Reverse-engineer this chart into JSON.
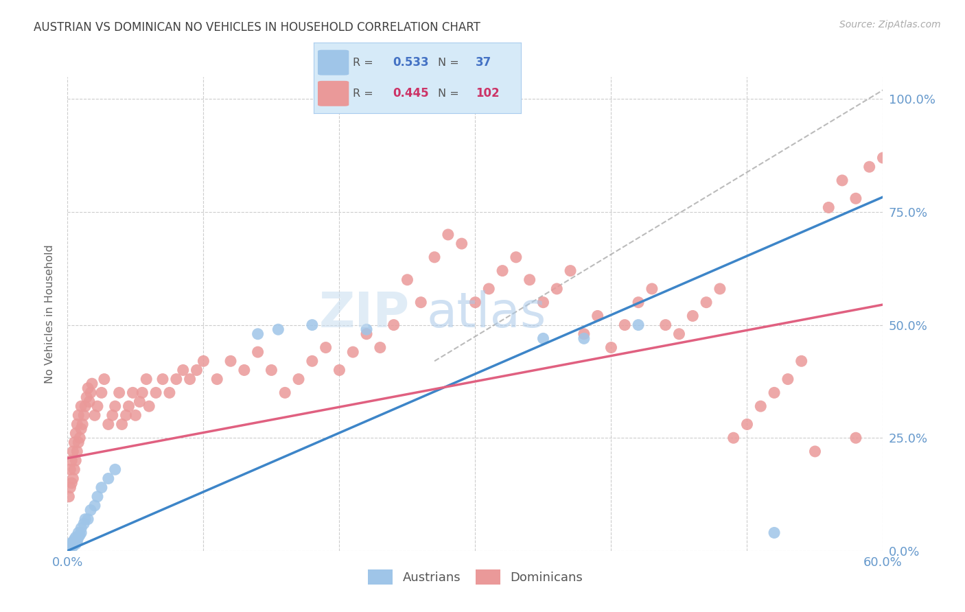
{
  "title": "AUSTRIAN VS DOMINICAN NO VEHICLES IN HOUSEHOLD CORRELATION CHART",
  "source": "Source: ZipAtlas.com",
  "xlim": [
    0.0,
    0.6
  ],
  "ylim": [
    0.0,
    1.05
  ],
  "austrians_R": 0.533,
  "austrians_N": 37,
  "dominicans_R": 0.445,
  "dominicans_N": 102,
  "blue_scatter_color": "#9fc5e8",
  "pink_scatter_color": "#ea9999",
  "blue_line_color": "#3d85c8",
  "pink_line_color": "#e06080",
  "gray_dash_color": "#aaaaaa",
  "title_color": "#404040",
  "axis_tick_color": "#6699cc",
  "background_color": "#ffffff",
  "grid_color": "#cccccc",
  "legend_bg_color": "#d6eaf8",
  "legend_border_color": "#aaccee",
  "legend_text_blue": "#4472c4",
  "legend_text_pink": "#cc3366",
  "ylabel": "No Vehicles in Household",
  "ytick_labels": [
    "0.0%",
    "25.0%",
    "50.0%",
    "75.0%",
    "100.0%"
  ],
  "ytick_vals": [
    0.0,
    0.25,
    0.5,
    0.75,
    1.0
  ],
  "xtick_labels": [
    "0.0%",
    "60.0%"
  ],
  "xtick_vals": [
    0.0,
    0.6
  ],
  "watermark_text": "ZIPatlas",
  "aus_line_x0": 0.0,
  "aus_line_y0": 0.0,
  "aus_line_x1": 0.36,
  "aus_line_y1": 0.47,
  "dom_line_x0": 0.0,
  "dom_line_y0": 0.205,
  "dom_line_x1": 0.6,
  "dom_line_y1": 0.545,
  "gray_line_x0": 0.27,
  "gray_line_y0": 0.42,
  "gray_line_x1": 0.6,
  "gray_line_y1": 1.02
}
